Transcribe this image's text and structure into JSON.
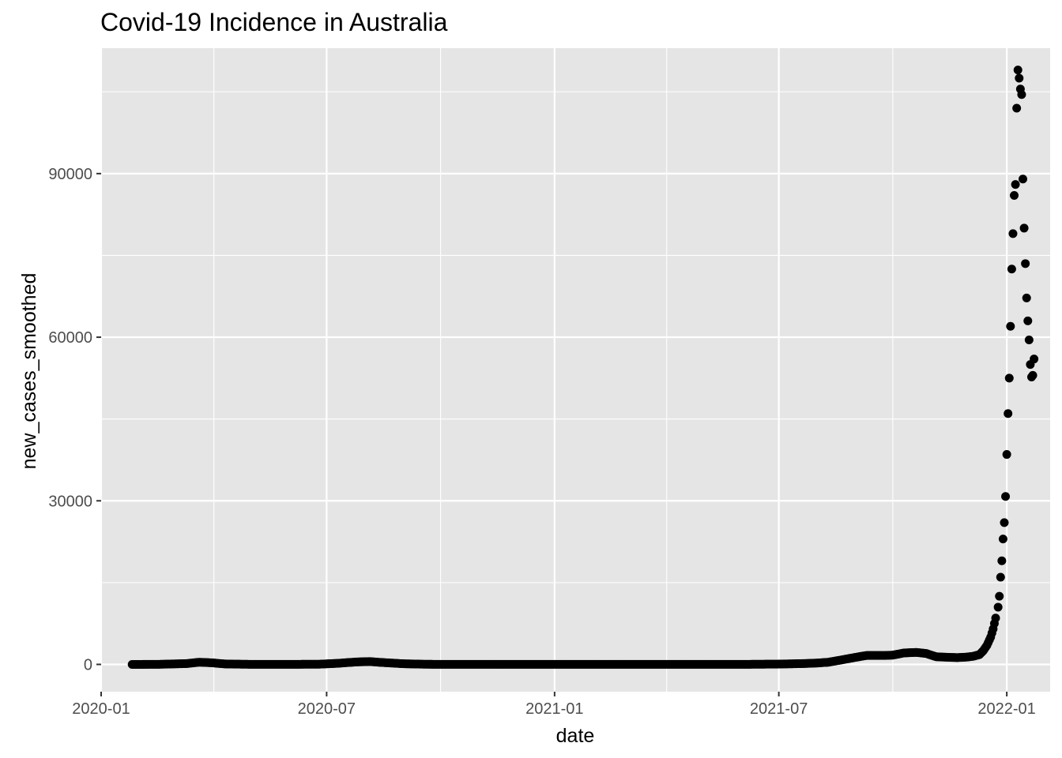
{
  "chart_data": {
    "type": "scatter",
    "title": "Covid-19 Incidence in Australia",
    "xlabel": "date",
    "ylabel": "new_cases_smoothed",
    "x_axis_type": "date",
    "xlim": [
      "2020-01-01",
      "2022-02-05"
    ],
    "ylim": [
      -5000,
      113000
    ],
    "x_ticks": [
      "2020-01-01",
      "2020-07-01",
      "2021-01-01",
      "2021-07-01",
      "2022-01-01"
    ],
    "x_tick_labels": [
      "2020-01",
      "2020-07",
      "2021-01",
      "2021-07",
      "2022-01"
    ],
    "y_ticks": [
      0,
      30000,
      60000,
      90000
    ],
    "y_tick_labels": [
      "0",
      "30000",
      "60000",
      "90000"
    ],
    "grid": true,
    "point_color": "#000000",
    "panel_background": "#e5e5e5",
    "grid_color": "#ffffff",
    "series": [
      {
        "anchors": [
          [
            "2020-01-26",
            0
          ],
          [
            "2020-02-15",
            10
          ],
          [
            "2020-03-10",
            150
          ],
          [
            "2020-03-20",
            400
          ],
          [
            "2020-03-30",
            300
          ],
          [
            "2020-04-10",
            80
          ],
          [
            "2020-05-01",
            15
          ],
          [
            "2020-06-01",
            10
          ],
          [
            "2020-06-25",
            40
          ],
          [
            "2020-07-10",
            200
          ],
          [
            "2020-07-25",
            450
          ],
          [
            "2020-08-05",
            520
          ],
          [
            "2020-08-15",
            350
          ],
          [
            "2020-09-01",
            120
          ],
          [
            "2020-09-20",
            25
          ],
          [
            "2020-10-15",
            10
          ],
          [
            "2021-01-01",
            15
          ],
          [
            "2021-06-01",
            10
          ],
          [
            "2021-07-01",
            60
          ],
          [
            "2021-07-20",
            150
          ],
          [
            "2021-08-01",
            250
          ],
          [
            "2021-08-10",
            400
          ],
          [
            "2021-08-20",
            800
          ],
          [
            "2021-09-01",
            1300
          ],
          [
            "2021-09-10",
            1650
          ],
          [
            "2021-09-25",
            1650
          ],
          [
            "2021-10-01",
            1700
          ],
          [
            "2021-10-10",
            2100
          ],
          [
            "2021-10-20",
            2200
          ],
          [
            "2021-10-28",
            2000
          ],
          [
            "2021-11-05",
            1400
          ],
          [
            "2021-11-15",
            1300
          ],
          [
            "2021-11-22",
            1250
          ],
          [
            "2021-11-30",
            1350
          ],
          [
            "2021-12-05",
            1500
          ],
          [
            "2021-12-10",
            1800
          ],
          [
            "2021-12-13",
            2500
          ],
          [
            "2021-12-16",
            3500
          ],
          [
            "2021-12-19",
            5000
          ],
          [
            "2021-12-21",
            6500
          ],
          [
            "2021-12-23",
            8500
          ]
        ],
        "points": [
          [
            "2021-12-25",
            10500
          ],
          [
            "2021-12-26",
            12500
          ],
          [
            "2021-12-27",
            16000
          ],
          [
            "2021-12-28",
            19000
          ],
          [
            "2021-12-29",
            23000
          ],
          [
            "2021-12-30",
            26000
          ],
          [
            "2021-12-31",
            30800
          ],
          [
            "2022-01-01",
            38500
          ],
          [
            "2022-01-02",
            46000
          ],
          [
            "2022-01-03",
            52500
          ],
          [
            "2022-01-04",
            62000
          ],
          [
            "2022-01-05",
            72500
          ],
          [
            "2022-01-06",
            79000
          ],
          [
            "2022-01-07",
            86000
          ],
          [
            "2022-01-08",
            88000
          ],
          [
            "2022-01-09",
            102000
          ],
          [
            "2022-01-10",
            109000
          ],
          [
            "2022-01-11",
            107500
          ],
          [
            "2022-01-12",
            105500
          ],
          [
            "2022-01-13",
            104500
          ],
          [
            "2022-01-14",
            89000
          ],
          [
            "2022-01-15",
            80000
          ],
          [
            "2022-01-16",
            73500
          ],
          [
            "2022-01-17",
            67200
          ],
          [
            "2022-01-18",
            63000
          ],
          [
            "2022-01-19",
            59500
          ],
          [
            "2022-01-20",
            55000
          ],
          [
            "2022-01-21",
            52700
          ],
          [
            "2022-01-22",
            53000
          ],
          [
            "2022-01-23",
            56000
          ]
        ]
      }
    ]
  }
}
